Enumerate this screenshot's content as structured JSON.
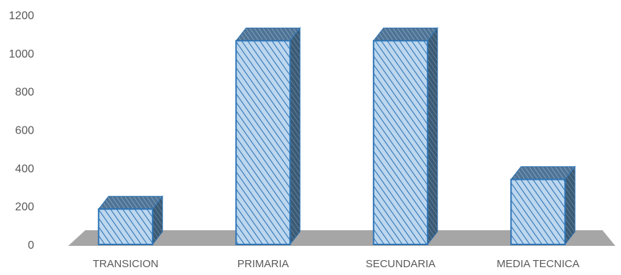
{
  "chart_data": {
    "type": "bar",
    "style": "3d-column",
    "categories": [
      "TRANSICION",
      "PRIMARIA",
      "SECUNDARIA",
      "MEDIA TECNICA"
    ],
    "values": [
      185,
      1065,
      1065,
      340
    ],
    "ylim": [
      0,
      1200
    ],
    "yticks": [
      0,
      200,
      400,
      600,
      800,
      1000,
      1200
    ],
    "grid": false,
    "legend": "none",
    "colors": {
      "bar_fill": "#9DC3E6",
      "bar_hatch": "#2E75B6",
      "bar_side": "#3B5A73",
      "bar_top": "#4F7394",
      "bar_stroke": "#2E75B6",
      "floor": "#A6A6A6"
    }
  }
}
